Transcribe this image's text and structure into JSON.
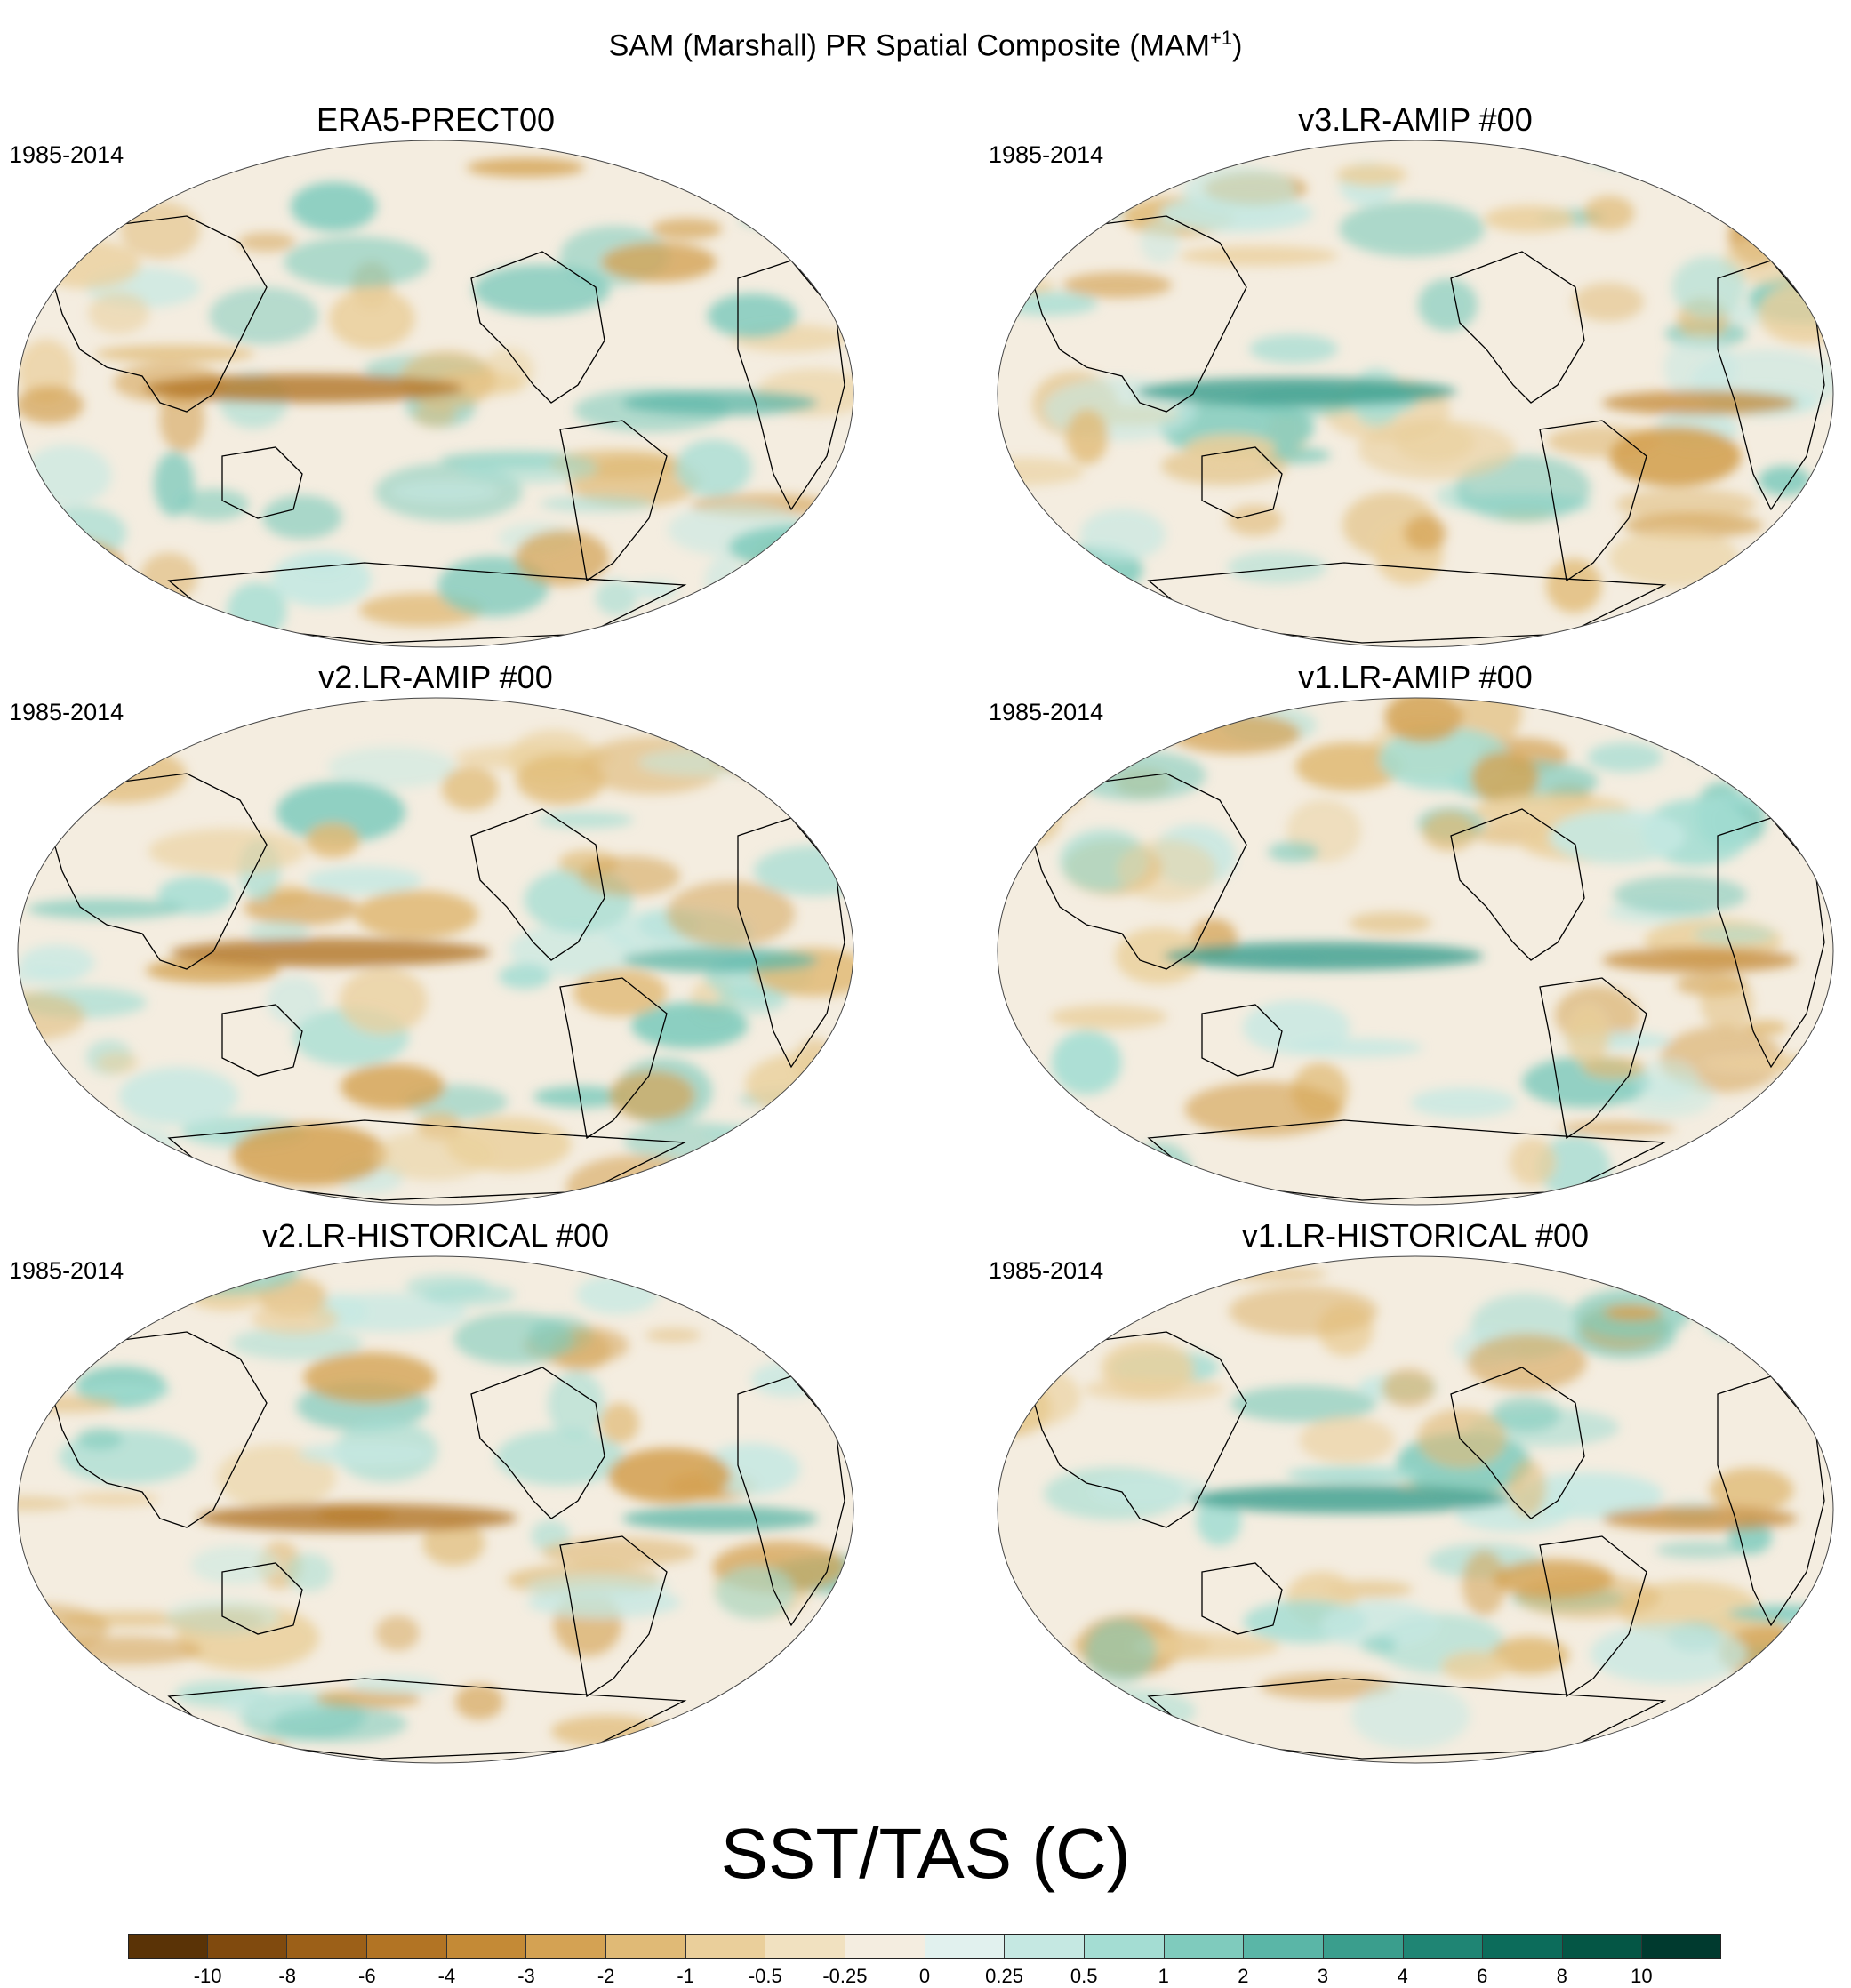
{
  "title": "SAM (Marshall) PR Spatial Composite (MAM",
  "title_sup": "+1",
  "title_end": ")",
  "panels": [
    {
      "title": "ERA5-PRECT00",
      "period": "1985-2014"
    },
    {
      "title": "v3.LR-AMIP  #00",
      "period": "1985-2014"
    },
    {
      "title": "v2.LR-AMIP  #00",
      "period": "1985-2014"
    },
    {
      "title": "v1.LR-AMIP  #00",
      "period": "1985-2014"
    },
    {
      "title": "v2.LR-HISTORICAL  #00",
      "period": "1985-2014"
    },
    {
      "title": "v1.LR-HISTORICAL  #00",
      "period": "1985-2014"
    }
  ],
  "legend": {
    "title": "SST/TAS (C)",
    "ticks": [
      "-10",
      "-8",
      "-6",
      "-4",
      "-3",
      "-2",
      "-1",
      "-0.5",
      "-0.25",
      "0",
      "0.25",
      "0.5",
      "1",
      "2",
      "3",
      "4",
      "6",
      "8",
      "10"
    ],
    "colors": [
      "#5a3306",
      "#804a0e",
      "#9c6018",
      "#b27424",
      "#c48a36",
      "#d4a253",
      "#e0ba76",
      "#eacf9b",
      "#f1e1c0",
      "#f4ede0",
      "#e1f1ee",
      "#c5e8e2",
      "#a4ddd3",
      "#7fcbbd",
      "#5ab6a7",
      "#3a9e8d",
      "#1f8574",
      "#0c6c5b",
      "#045645",
      "#003a2f"
    ]
  },
  "colors": {
    "brown": "#c48a36",
    "teal": "#3a9e8d",
    "background": "#f4ede0",
    "coast": "#000000"
  }
}
